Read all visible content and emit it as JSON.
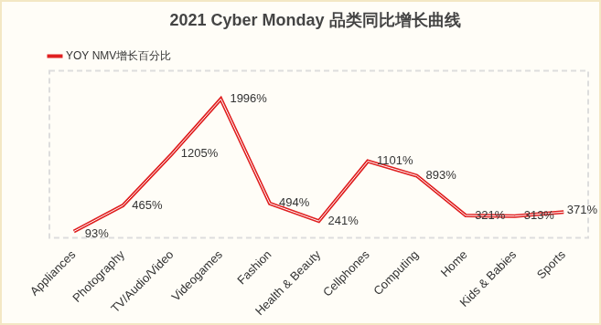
{
  "chart_data": {
    "type": "line",
    "title": "2021 Cyber Monday 品类同比增长曲线",
    "categories": [
      "Appliances",
      "Photography",
      "TV/Audio/Video",
      "Videogames",
      "Fashion",
      "Health & Beauty",
      "Cellphones",
      "Computing",
      "Home",
      "Kids & Babies",
      "Sports"
    ],
    "series": [
      {
        "name": "YOY NMV增长百分比",
        "color": "#e02020",
        "values": [
          93,
          465,
          1205,
          1996,
          494,
          241,
          1101,
          893,
          321,
          313,
          371
        ],
        "value_labels": [
          "93%",
          "465%",
          "1205%",
          "1996%",
          "494%",
          "241%",
          "1101%",
          "893%",
          "321%",
          "313%",
          "371%"
        ]
      }
    ],
    "ylim": [
      0,
      2400
    ],
    "grid": false,
    "legend": "top-left",
    "data_labels": true,
    "tick_labels": "x"
  }
}
